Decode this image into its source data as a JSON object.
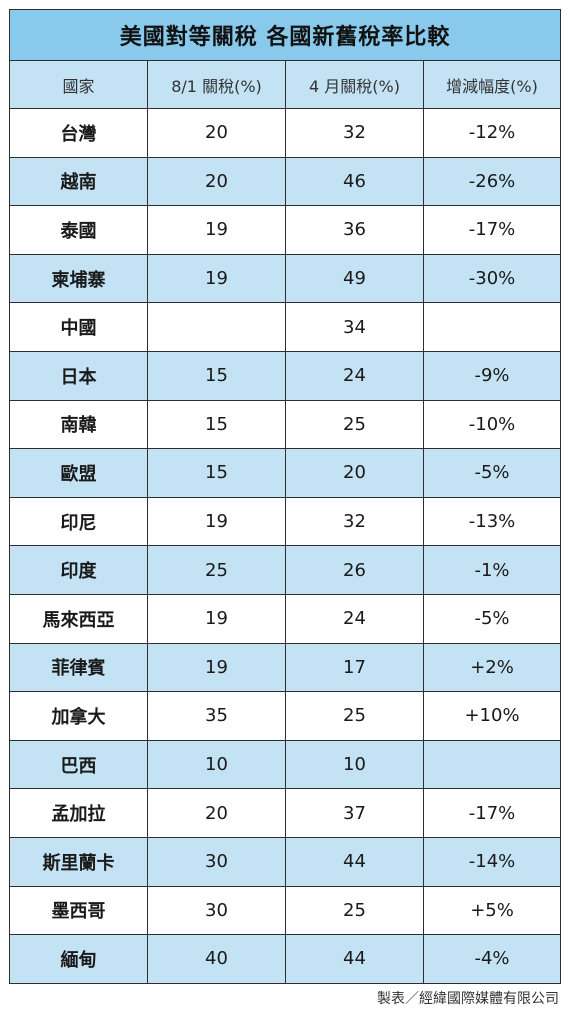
{
  "chart_data": {
    "type": "table",
    "title": "美國對等關稅  各國新舊稅率比較",
    "columns": [
      "國家",
      "8/1 關稅(%)",
      "4 月關稅(%)",
      "增減幅度(%)"
    ],
    "rows": [
      {
        "country": "台灣",
        "aug": "20",
        "apr": "32",
        "change": "-12%"
      },
      {
        "country": "越南",
        "aug": "20",
        "apr": "46",
        "change": "-26%"
      },
      {
        "country": "泰國",
        "aug": "19",
        "apr": "36",
        "change": "-17%"
      },
      {
        "country": "柬埔寨",
        "aug": "19",
        "apr": "49",
        "change": "-30%"
      },
      {
        "country": "中國",
        "aug": "",
        "apr": "34",
        "change": ""
      },
      {
        "country": "日本",
        "aug": "15",
        "apr": "24",
        "change": "-9%"
      },
      {
        "country": "南韓",
        "aug": "15",
        "apr": "25",
        "change": "-10%"
      },
      {
        "country": "歐盟",
        "aug": "15",
        "apr": "20",
        "change": "-5%"
      },
      {
        "country": "印尼",
        "aug": "19",
        "apr": "32",
        "change": "-13%"
      },
      {
        "country": "印度",
        "aug": "25",
        "apr": "26",
        "change": "-1%"
      },
      {
        "country": "馬來西亞",
        "aug": "19",
        "apr": "24",
        "change": "-5%"
      },
      {
        "country": "菲律賓",
        "aug": "19",
        "apr": "17",
        "change": "+2%"
      },
      {
        "country": "加拿大",
        "aug": "35",
        "apr": "25",
        "change": "+10%"
      },
      {
        "country": "巴西",
        "aug": "10",
        "apr": "10",
        "change": ""
      },
      {
        "country": "孟加拉",
        "aug": "20",
        "apr": "37",
        "change": "-17%"
      },
      {
        "country": "斯里蘭卡",
        "aug": "30",
        "apr": "44",
        "change": "-14%"
      },
      {
        "country": "墨西哥",
        "aug": "30",
        "apr": "25",
        "change": "+5%"
      },
      {
        "country": "緬甸",
        "aug": "40",
        "apr": "44",
        "change": "-4%"
      }
    ]
  },
  "credit": "製表／經緯國際媒體有限公司",
  "colors": {
    "title_bg": "#88c9ec",
    "header_bg": "#c3e3f5",
    "alt_row_bg": "#c3e3f5",
    "positive_text": "#d6181e"
  }
}
